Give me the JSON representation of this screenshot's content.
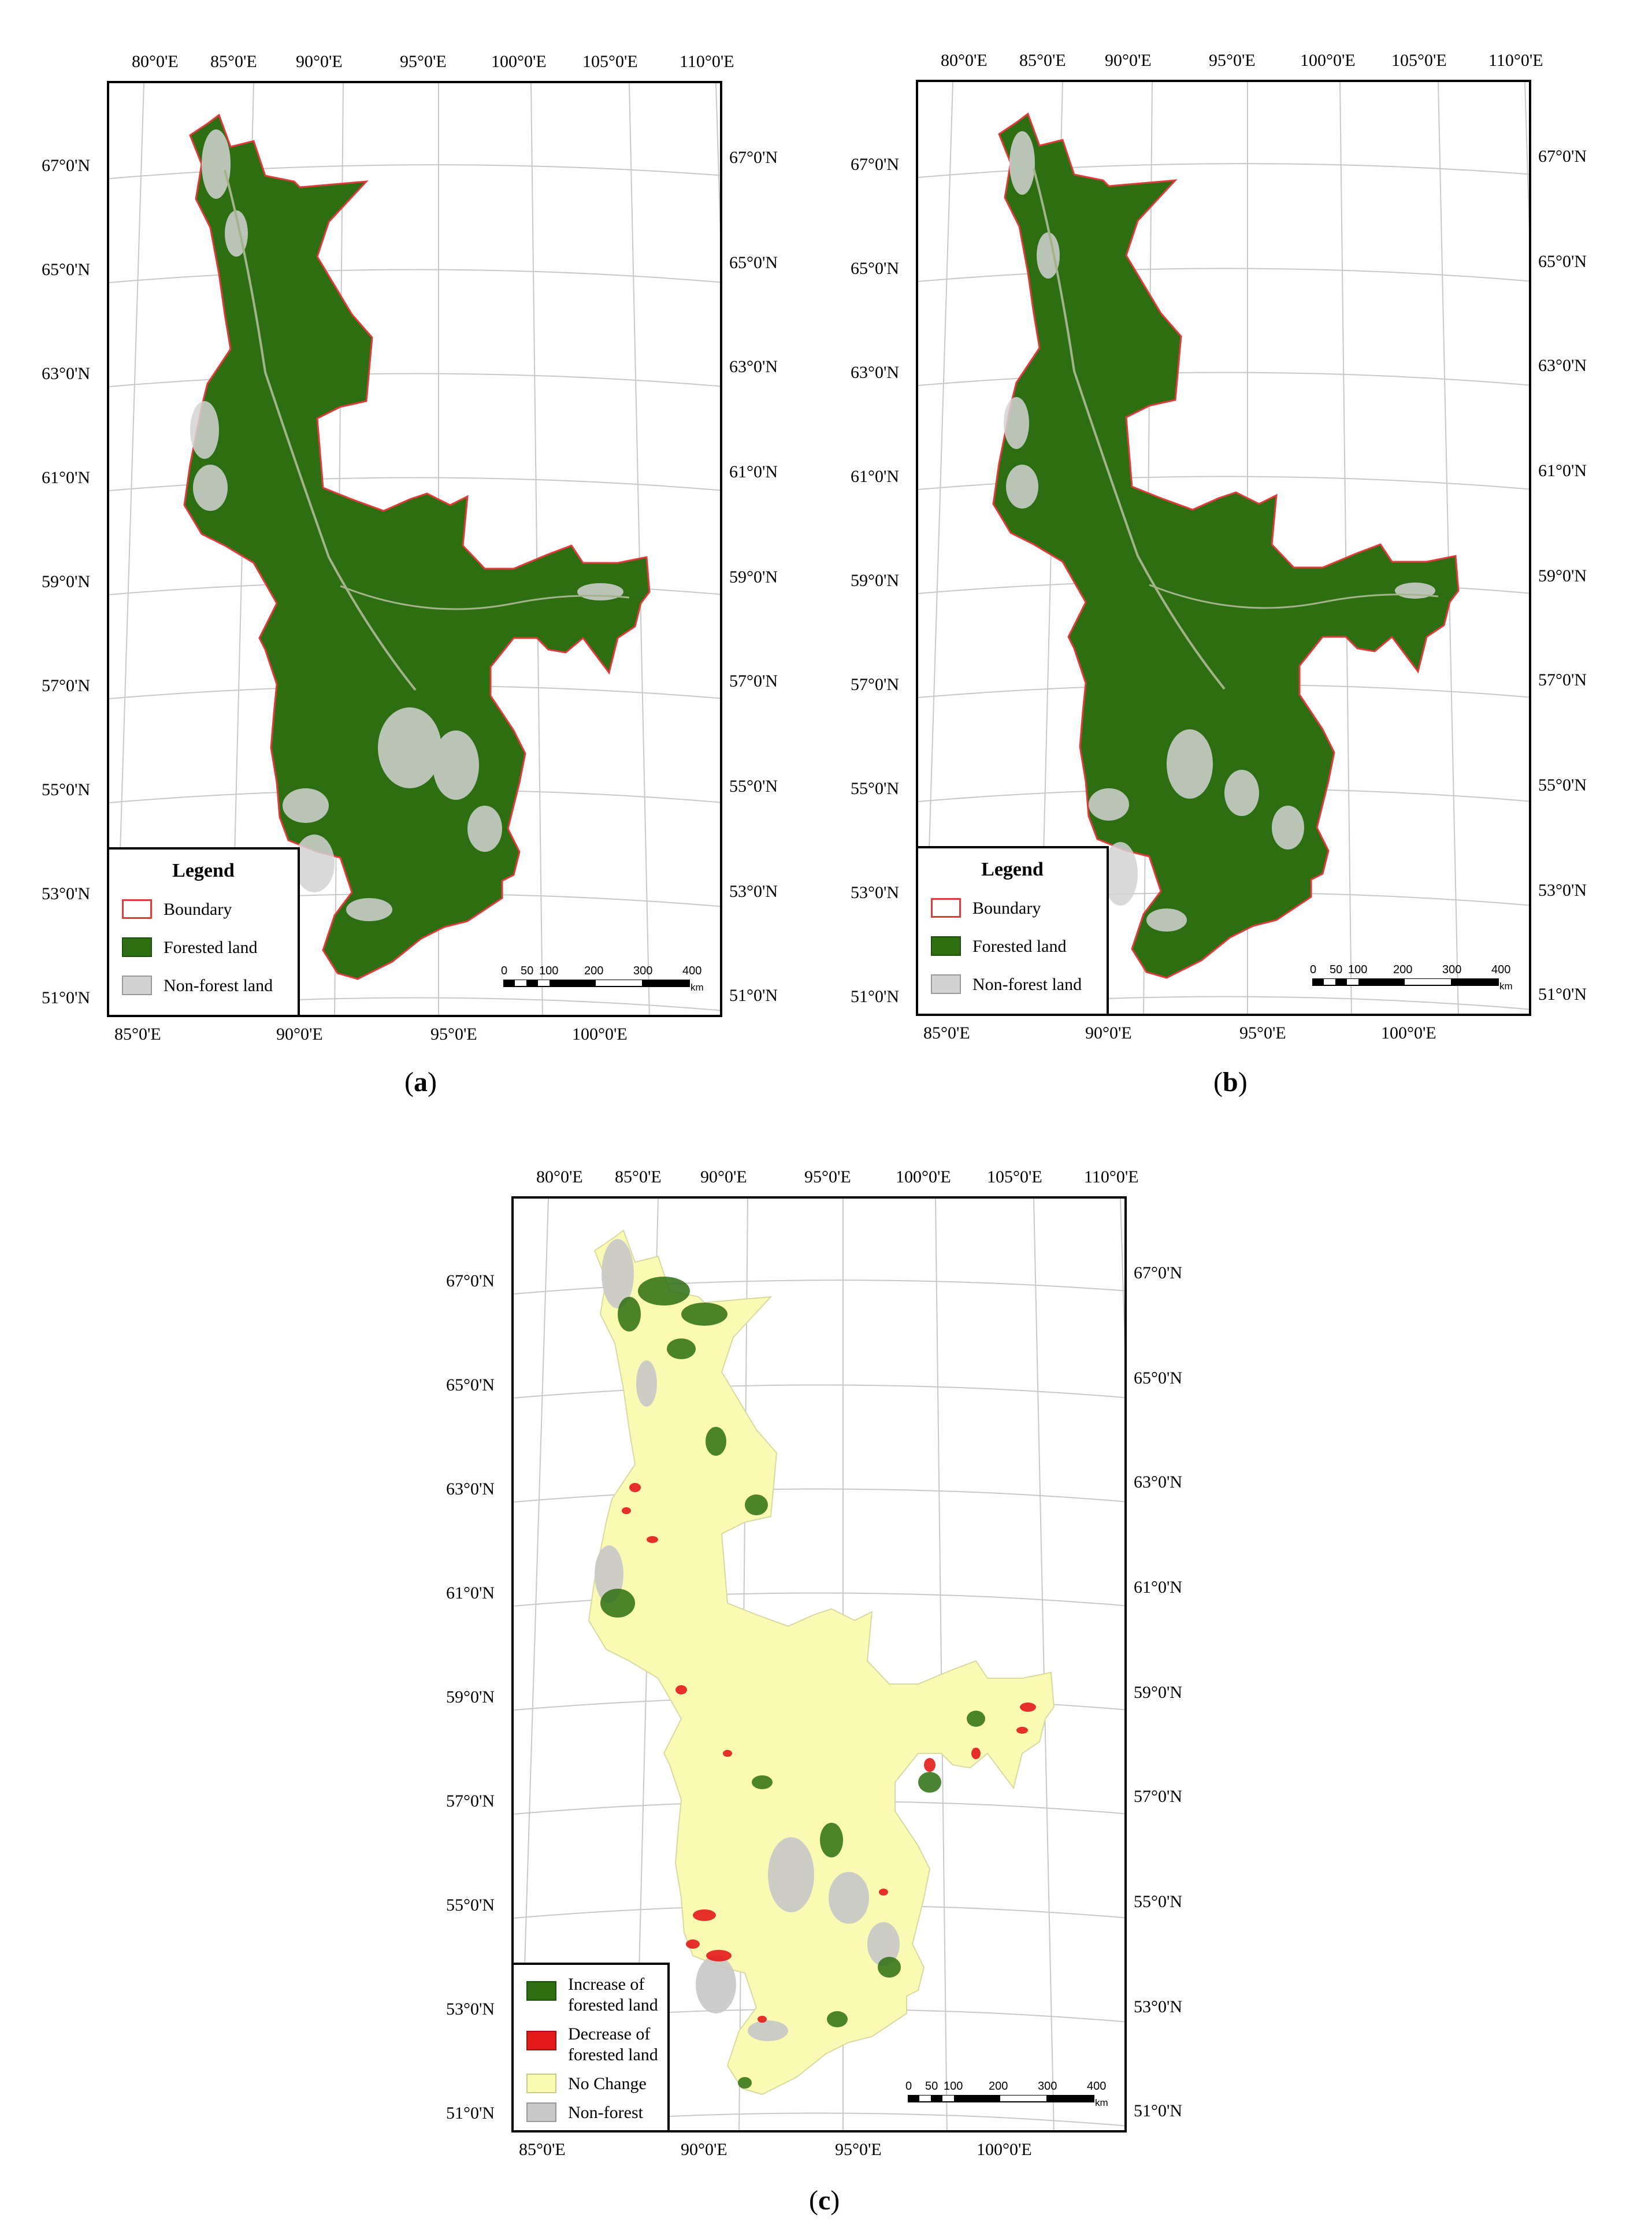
{
  "panels": [
    {
      "caption": "a",
      "top_lon_labels": [
        "80°0'E",
        "85°0'E",
        "90°0'E",
        "95°0'E",
        "100°0'E",
        "105°0'E",
        "110°0'E"
      ],
      "bottom_lon_labels": [
        "85°0'E",
        "90°0'E",
        "95°0'E",
        "100°0'E"
      ],
      "left_lat_labels": [
        "67°0'N",
        "65°0'N",
        "63°0'N",
        "61°0'N",
        "59°0'N",
        "57°0'N",
        "55°0'N",
        "53°0'N",
        "51°0'N"
      ],
      "right_lat_labels": [
        "67°0'N",
        "65°0'N",
        "63°0'N",
        "61°0'N",
        "59°0'N",
        "57°0'N",
        "55°0'N",
        "53°0'N",
        "51°0'N"
      ],
      "legend": {
        "title": "Legend",
        "items": [
          {
            "label": "Boundary",
            "swatch": "#ffffff",
            "border": "#e03a3a"
          },
          {
            "label": "Forested land",
            "swatch": "#2d6e12",
            "border": "#1f4f0c"
          },
          {
            "label": "Non-forest land",
            "swatch": "#d3d3d3",
            "border": "#9a9a9a"
          }
        ]
      },
      "scale": {
        "ticks": [
          "0",
          "50",
          "100",
          "200",
          "300",
          "400"
        ],
        "unit": "km"
      }
    },
    {
      "caption": "b",
      "top_lon_labels": [
        "80°0'E",
        "85°0'E",
        "90°0'E",
        "95°0'E",
        "100°0'E",
        "105°0'E",
        "110°0'E"
      ],
      "bottom_lon_labels": [
        "85°0'E",
        "90°0'E",
        "95°0'E",
        "100°0'E"
      ],
      "left_lat_labels": [
        "67°0'N",
        "65°0'N",
        "63°0'N",
        "61°0'N",
        "59°0'N",
        "57°0'N",
        "55°0'N",
        "53°0'N",
        "51°0'N"
      ],
      "right_lat_labels": [
        "67°0'N",
        "65°0'N",
        "63°0'N",
        "61°0'N",
        "59°0'N",
        "57°0'N",
        "55°0'N",
        "53°0'N",
        "51°0'N"
      ],
      "legend": {
        "title": "Legend",
        "items": [
          {
            "label": "Boundary",
            "swatch": "#ffffff",
            "border": "#e03a3a"
          },
          {
            "label": "Forested land",
            "swatch": "#2d6e12",
            "border": "#1f4f0c"
          },
          {
            "label": "Non-forest land",
            "swatch": "#d3d3d3",
            "border": "#9a9a9a"
          }
        ]
      },
      "scale": {
        "ticks": [
          "0",
          "50",
          "100",
          "200",
          "300",
          "400"
        ],
        "unit": "km"
      }
    },
    {
      "caption": "c",
      "top_lon_labels": [
        "80°0'E",
        "85°0'E",
        "90°0'E",
        "95°0'E",
        "100°0'E",
        "105°0'E",
        "110°0'E"
      ],
      "bottom_lon_labels": [
        "85°0'E",
        "90°0'E",
        "95°0'E",
        "100°0'E"
      ],
      "left_lat_labels": [
        "67°0'N",
        "65°0'N",
        "63°0'N",
        "61°0'N",
        "59°0'N",
        "57°0'N",
        "55°0'N",
        "53°0'N",
        "51°0'N"
      ],
      "right_lat_labels": [
        "67°0'N",
        "65°0'N",
        "63°0'N",
        "61°0'N",
        "59°0'N",
        "57°0'N",
        "55°0'N",
        "53°0'N",
        "51°0'N"
      ],
      "legend": {
        "title": "",
        "items": [
          {
            "label": "Increase of\nforested land",
            "swatch": "#2d6e12",
            "border": "#1f4f0c"
          },
          {
            "label": "Decrease of\nforested land",
            "swatch": "#e41a1a",
            "border": "#a01010"
          },
          {
            "label": "No Change",
            "swatch": "#fafab4",
            "border": "#c9c98a"
          },
          {
            "label": "Non-forest",
            "swatch": "#c8c8c8",
            "border": "#9a9a9a"
          }
        ]
      },
      "scale": {
        "ticks": [
          "0",
          "50",
          "100",
          "200",
          "300",
          "400"
        ],
        "unit": "km"
      }
    }
  ],
  "colors": {
    "forest": "#2d6e12",
    "nonforest": "#d3d3d3",
    "boundary": "#e03a3a",
    "nochange": "#fafab4",
    "decrease": "#e41a1a",
    "graticule": "#c8c8c8"
  }
}
